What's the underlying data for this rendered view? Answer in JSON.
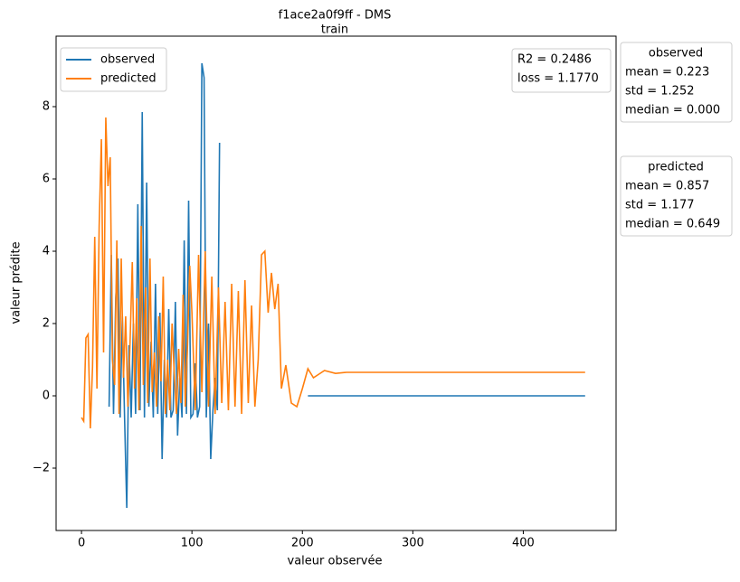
{
  "chart_data": {
    "type": "line",
    "title": "f1ace2a0f9ff - DMS",
    "subtitle": "train",
    "x_label": "valeur observée",
    "y_label": "valeur prédite",
    "xlim": [
      -23,
      484
    ],
    "ylim": [
      -3.725,
      9.95
    ],
    "xticks": [
      0,
      100,
      200,
      300,
      400
    ],
    "yticks": [
      {
        "value": -2,
        "label": "−2"
      },
      0,
      2,
      4,
      6,
      8
    ],
    "legend": "upper left",
    "series": [
      {
        "name": "observed",
        "color": "#1f77b4",
        "x": [
          25,
          27,
          29,
          31,
          33,
          35,
          37,
          39,
          41,
          43,
          45,
          47,
          49,
          51,
          53,
          55,
          57,
          59,
          61,
          63,
          65,
          67,
          69,
          71,
          73,
          75,
          77,
          79,
          81,
          83,
          85,
          87,
          89,
          91,
          93,
          95,
          97,
          99,
          101,
          103,
          105,
          107,
          109,
          111,
          113,
          115,
          117,
          119,
          121,
          123,
          125,
          165,
          205,
          456
        ],
        "values": [
          -0.3,
          3.9,
          -0.5,
          2.7,
          3.8,
          -0.6,
          2.2,
          -0.6,
          -3.1,
          1.4,
          -0.6,
          2.0,
          -0.5,
          5.3,
          -0.4,
          7.85,
          -0.6,
          5.9,
          -0.3,
          1.5,
          -0.6,
          3.1,
          -0.5,
          2.3,
          -1.75,
          1.0,
          -0.6,
          2.4,
          -0.6,
          -0.4,
          2.6,
          -1.1,
          0.5,
          -0.6,
          4.3,
          -0.5,
          5.4,
          -0.6,
          -0.5,
          0.9,
          -0.6,
          -0.3,
          9.2,
          8.8,
          -0.6,
          2.0,
          -1.75,
          -0.4,
          0.5,
          -0.4,
          7.0,
          null,
          0,
          0
        ]
      },
      {
        "name": "predicted",
        "color": "#ff7f0e",
        "x": [
          0,
          2,
          4,
          6,
          8,
          10,
          12,
          14,
          16,
          18,
          20,
          22,
          24,
          26,
          28,
          30,
          32,
          34,
          36,
          38,
          40,
          42,
          44,
          46,
          48,
          50,
          52,
          54,
          56,
          58,
          60,
          62,
          64,
          66,
          68,
          70,
          72,
          74,
          76,
          78,
          80,
          82,
          84,
          86,
          88,
          90,
          92,
          94,
          96,
          98,
          100,
          103,
          106,
          109,
          112,
          115,
          118,
          121,
          124,
          127,
          130,
          133,
          136,
          139,
          142,
          145,
          148,
          151,
          154,
          157,
          160,
          163,
          166,
          169,
          172,
          175,
          178,
          181,
          185,
          190,
          195,
          200,
          205,
          210,
          215,
          220,
          230,
          240,
          250,
          260,
          456
        ],
        "values": [
          -0.6,
          -0.7,
          1.6,
          1.7,
          -0.9,
          0.8,
          4.4,
          0.2,
          4.7,
          7.1,
          1.2,
          7.7,
          5.8,
          6.6,
          1.0,
          0.3,
          4.3,
          -0.5,
          3.8,
          0.5,
          2.2,
          -0.3,
          1.5,
          3.7,
          0.2,
          2.7,
          -0.4,
          4.7,
          0.3,
          3.0,
          -0.2,
          3.8,
          0.1,
          1.2,
          -0.3,
          2.2,
          0.4,
          3.3,
          -0.5,
          1.0,
          -0.4,
          2.0,
          0.6,
          -0.5,
          1.3,
          -0.2,
          2.8,
          -0.3,
          1.4,
          3.6,
          2.3,
          -0.4,
          3.9,
          0.1,
          4.0,
          -0.3,
          3.3,
          -0.5,
          3.0,
          -0.2,
          2.6,
          -0.4,
          3.1,
          -0.3,
          2.9,
          -0.5,
          3.2,
          -0.2,
          2.5,
          -0.3,
          1.0,
          3.9,
          4.0,
          2.3,
          3.4,
          2.4,
          3.1,
          0.2,
          0.85,
          -0.2,
          -0.3,
          0.2,
          0.75,
          0.5,
          0.6,
          0.7,
          0.62,
          0.65,
          0.65,
          0.65,
          0.65
        ]
      }
    ],
    "metrics_box": [
      "R2 = 0.2486",
      "loss = 1.1770"
    ],
    "stats_boxes": [
      {
        "title": "observed",
        "lines": [
          "mean = 0.223",
          "std = 1.252",
          "median = 0.000"
        ]
      },
      {
        "title": "predicted",
        "lines": [
          "mean = 0.857",
          "std = 1.177",
          "median = 0.649"
        ]
      }
    ]
  }
}
